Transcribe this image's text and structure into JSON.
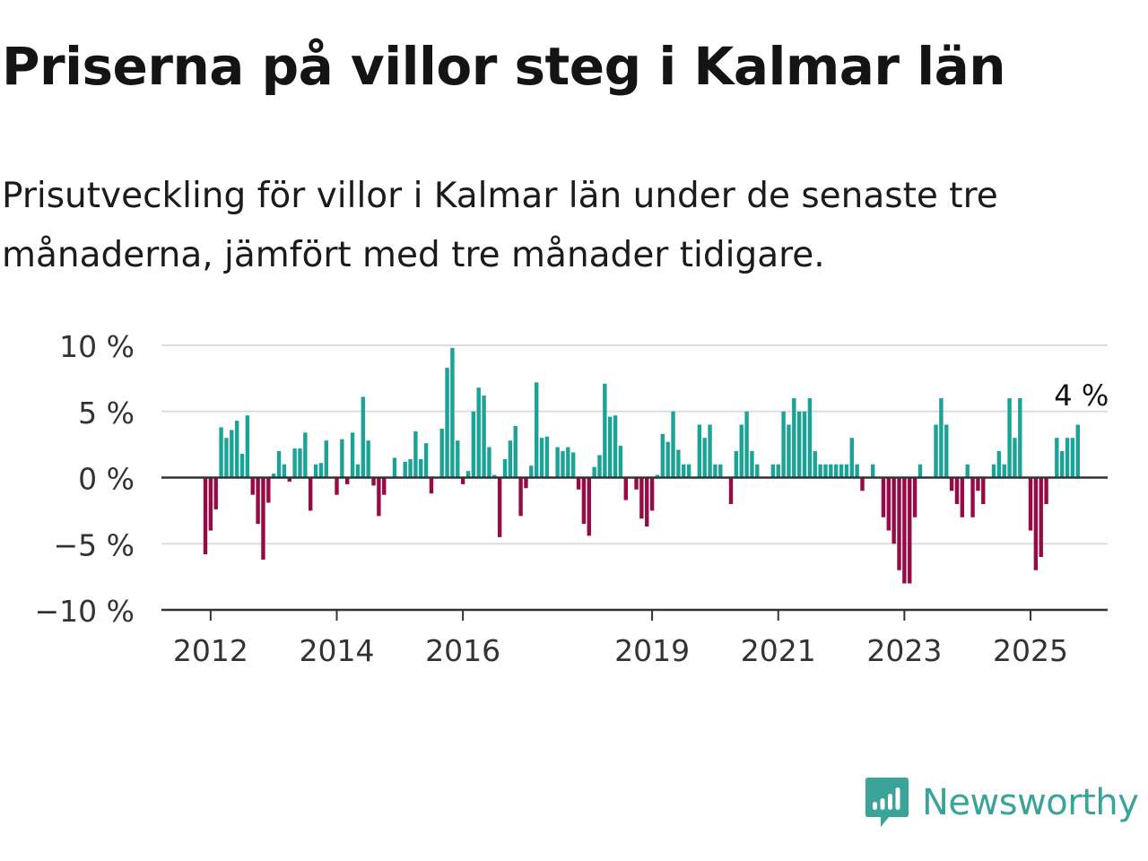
{
  "title": "Priserna på villor steg i Kalmar län",
  "subtitle": "Prisutveckling för villor i Kalmar län under de senaste tre månaderna, jämfört med tre månader tidigare.",
  "brand": {
    "name": "Newsworthy",
    "icon": "bar-chart-speech-bubble-icon"
  },
  "colors": {
    "positive": "#1aa396",
    "negative": "#980a45",
    "grid": "#dddddd",
    "axis": "#333333",
    "brand": "#3aa39a"
  },
  "chart_data": {
    "type": "bar",
    "x_start": "2011-12",
    "x_step": "month",
    "yunit": "%",
    "ylim": [
      -10,
      10
    ],
    "yticks": [
      {
        "value": 10,
        "label": "10 %"
      },
      {
        "value": 5,
        "label": "5 %"
      },
      {
        "value": 0,
        "label": "0 %"
      },
      {
        "value": -5,
        "label": "−5 %"
      },
      {
        "value": -10,
        "label": "−10 %"
      }
    ],
    "xticks": [
      {
        "month": "2012-01",
        "label": "2012"
      },
      {
        "month": "2014-01",
        "label": "2014"
      },
      {
        "month": "2016-01",
        "label": "2016"
      },
      {
        "month": "2019-01",
        "label": "2019"
      },
      {
        "month": "2021-01",
        "label": "2021"
      },
      {
        "month": "2023-01",
        "label": "2023"
      },
      {
        "month": "2025-01",
        "label": "2025"
      }
    ],
    "last_value_label": "4 %",
    "grid": true,
    "values": [
      -5.8,
      -4,
      -2.4,
      3.8,
      3,
      3.6,
      4.3,
      1.8,
      4.7,
      -1.3,
      -3.5,
      -6.2,
      -1.9,
      0.3,
      2,
      1,
      -0.3,
      2.2,
      2.2,
      3.4,
      -2.5,
      1,
      1.1,
      2.8,
      0,
      -1.3,
      2.9,
      -0.5,
      3.4,
      1,
      6.1,
      2.8,
      -0.6,
      -2.9,
      -1.3,
      0,
      1.5,
      0,
      1.2,
      1.4,
      3.5,
      1.4,
      2.6,
      -1.2,
      0,
      3.7,
      8.3,
      9.8,
      2.8,
      -0.5,
      0.5,
      5,
      6.8,
      6.2,
      2.3,
      0.2,
      -4.5,
      1.4,
      2.8,
      3.9,
      -2.9,
      -0.8,
      0.9,
      7.2,
      3,
      3.1,
      0,
      2.3,
      2,
      2.3,
      1.9,
      -0.9,
      -3.5,
      -4.4,
      0.8,
      1.7,
      7.1,
      4.6,
      4.7,
      2.4,
      -1.7,
      0,
      -0.9,
      -3.1,
      -3.7,
      -2.5,
      0.2,
      3.3,
      2.7,
      5,
      2.1,
      1,
      1,
      0,
      4,
      3,
      4,
      1,
      1,
      0,
      -2,
      2,
      4,
      5,
      2,
      1,
      0,
      0,
      1,
      1,
      5,
      4,
      6,
      5,
      5,
      6,
      2,
      1,
      1,
      1,
      1,
      1,
      1,
      3,
      1,
      -1,
      0,
      1,
      0,
      -3,
      -4,
      -5,
      -7,
      -8,
      -8,
      -3,
      1,
      0,
      0,
      4,
      6,
      4,
      -1,
      -2,
      -3,
      1,
      -3,
      -1,
      -2,
      0,
      1,
      2,
      1,
      6,
      3,
      6,
      0,
      -4,
      -7,
      -6,
      -2,
      0,
      3,
      2,
      3,
      3,
      4
    ]
  }
}
